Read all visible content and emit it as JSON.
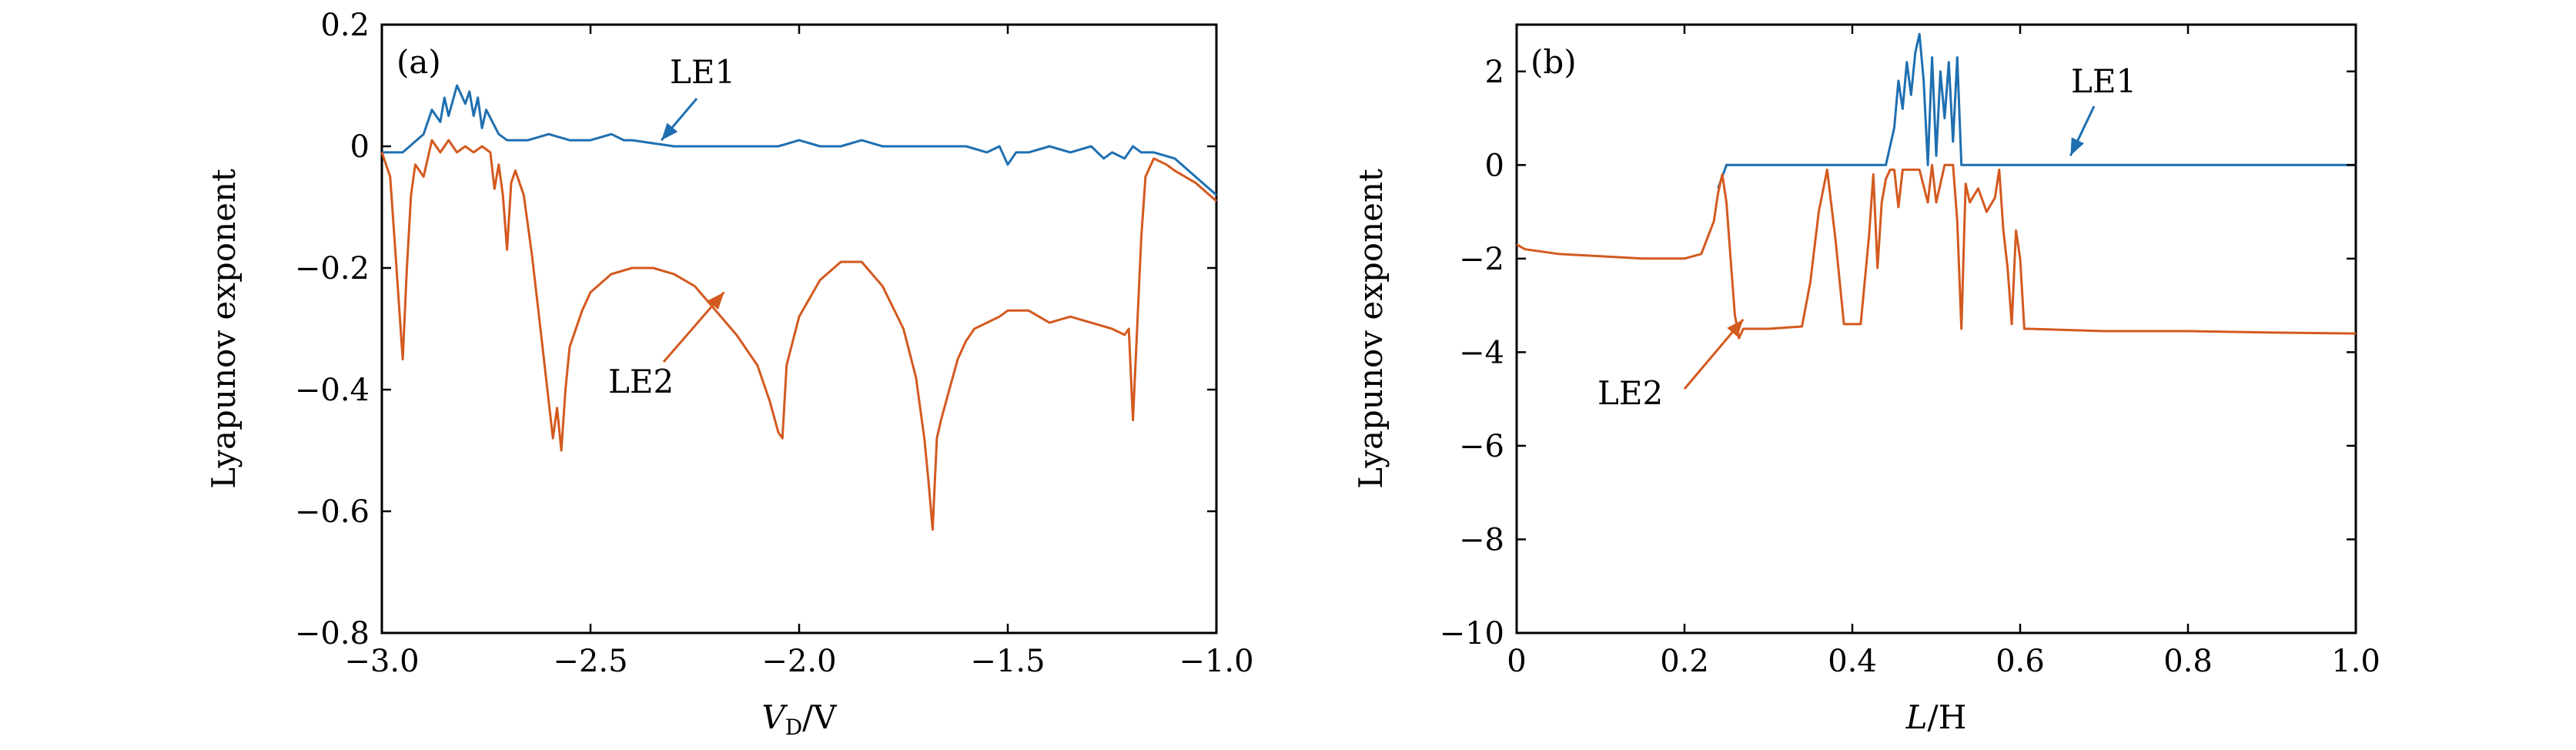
{
  "chart_data": [
    {
      "type": "line",
      "panel_label": "(a)",
      "xlabel": "V_D/V",
      "xlabel_main": "V",
      "xlabel_sub": "D",
      "xlabel_rest": "/V",
      "ylabel": "Lyapunov exponent",
      "xlim": [
        -3.0,
        -1.0
      ],
      "ylim": [
        -0.8,
        0.2
      ],
      "xticks": [
        -3.0,
        -2.5,
        -2.0,
        -1.5,
        -1.0
      ],
      "xtick_labels": [
        "−3.0",
        "−2.5",
        "−2.0",
        "−1.5",
        "−1.0"
      ],
      "yticks": [
        -0.8,
        -0.6,
        -0.4,
        -0.2,
        0,
        0.2
      ],
      "ytick_labels": [
        "−0.8",
        "−0.6",
        "−0.4",
        "−0.2",
        "0",
        "0.2"
      ],
      "grid": false,
      "series": [
        {
          "name": "LE1",
          "color": "#1f6fb0",
          "x": [
            -3.0,
            -2.95,
            -2.9,
            -2.88,
            -2.86,
            -2.85,
            -2.84,
            -2.82,
            -2.8,
            -2.79,
            -2.78,
            -2.77,
            -2.76,
            -2.75,
            -2.72,
            -2.7,
            -2.65,
            -2.6,
            -2.55,
            -2.5,
            -2.45,
            -2.42,
            -2.4,
            -2.3,
            -2.2,
            -2.1,
            -2.05,
            -2.0,
            -1.95,
            -1.9,
            -1.85,
            -1.8,
            -1.7,
            -1.6,
            -1.55,
            -1.52,
            -1.5,
            -1.48,
            -1.45,
            -1.4,
            -1.35,
            -1.3,
            -1.27,
            -1.25,
            -1.22,
            -1.2,
            -1.18,
            -1.15,
            -1.1,
            -1.05,
            -1.0
          ],
          "y": [
            -0.01,
            -0.01,
            0.02,
            0.06,
            0.04,
            0.08,
            0.05,
            0.1,
            0.07,
            0.09,
            0.05,
            0.08,
            0.03,
            0.06,
            0.02,
            0.01,
            0.01,
            0.02,
            0.01,
            0.01,
            0.02,
            0.01,
            0.01,
            0.0,
            0.0,
            0.0,
            0.0,
            0.01,
            0.0,
            0.0,
            0.01,
            0.0,
            0.0,
            0.0,
            -0.01,
            0.0,
            -0.03,
            -0.01,
            -0.01,
            0.0,
            -0.01,
            0.0,
            -0.02,
            -0.01,
            -0.02,
            0.0,
            -0.01,
            -0.01,
            -0.02,
            -0.05,
            -0.08
          ]
        },
        {
          "name": "LE2",
          "color": "#d4591f",
          "x": [
            -3.0,
            -2.98,
            -2.97,
            -2.96,
            -2.95,
            -2.94,
            -2.93,
            -2.92,
            -2.9,
            -2.88,
            -2.86,
            -2.84,
            -2.82,
            -2.8,
            -2.78,
            -2.76,
            -2.74,
            -2.73,
            -2.72,
            -2.71,
            -2.7,
            -2.69,
            -2.68,
            -2.66,
            -2.64,
            -2.62,
            -2.6,
            -2.59,
            -2.58,
            -2.57,
            -2.56,
            -2.55,
            -2.52,
            -2.5,
            -2.45,
            -2.4,
            -2.35,
            -2.3,
            -2.25,
            -2.2,
            -2.15,
            -2.1,
            -2.07,
            -2.05,
            -2.04,
            -2.03,
            -2.0,
            -1.95,
            -1.9,
            -1.85,
            -1.8,
            -1.75,
            -1.72,
            -1.7,
            -1.69,
            -1.68,
            -1.67,
            -1.66,
            -1.64,
            -1.62,
            -1.6,
            -1.58,
            -1.55,
            -1.52,
            -1.5,
            -1.45,
            -1.4,
            -1.35,
            -1.3,
            -1.25,
            -1.22,
            -1.21,
            -1.2,
            -1.19,
            -1.18,
            -1.17,
            -1.15,
            -1.12,
            -1.1,
            -1.05,
            -1.0
          ],
          "y": [
            -0.01,
            -0.05,
            -0.15,
            -0.25,
            -0.35,
            -0.2,
            -0.08,
            -0.03,
            -0.05,
            0.01,
            -0.01,
            0.01,
            -0.01,
            0.0,
            -0.01,
            0.0,
            -0.01,
            -0.07,
            -0.03,
            -0.08,
            -0.17,
            -0.06,
            -0.04,
            -0.08,
            -0.18,
            -0.3,
            -0.42,
            -0.48,
            -0.43,
            -0.5,
            -0.4,
            -0.33,
            -0.27,
            -0.24,
            -0.21,
            -0.2,
            -0.2,
            -0.21,
            -0.23,
            -0.27,
            -0.31,
            -0.36,
            -0.42,
            -0.47,
            -0.48,
            -0.36,
            -0.28,
            -0.22,
            -0.19,
            -0.19,
            -0.23,
            -0.3,
            -0.38,
            -0.48,
            -0.55,
            -0.63,
            -0.48,
            -0.45,
            -0.4,
            -0.35,
            -0.32,
            -0.3,
            -0.29,
            -0.28,
            -0.27,
            -0.27,
            -0.29,
            -0.28,
            -0.29,
            -0.3,
            -0.31,
            -0.3,
            -0.45,
            -0.3,
            -0.15,
            -0.05,
            -0.02,
            -0.03,
            -0.04,
            -0.06,
            -0.09
          ]
        }
      ],
      "annotations": [
        {
          "text": "LE1",
          "target": [
            -2.33,
            0.01
          ],
          "series_color": "#1f6fb0"
        },
        {
          "text": "LE2",
          "target": [
            -2.18,
            -0.24
          ],
          "series_color": "#d4591f"
        }
      ]
    },
    {
      "type": "line",
      "panel_label": "(b)",
      "xlabel": "L/H",
      "xlabel_main": "L",
      "xlabel_rest": "/H",
      "ylabel": "Lyapunov exponent",
      "xlim": [
        0,
        1.0
      ],
      "ylim": [
        -10,
        3
      ],
      "xticks": [
        0,
        0.2,
        0.4,
        0.6,
        0.8,
        1.0
      ],
      "xtick_labels": [
        "0",
        "0.2",
        "0.4",
        "0.6",
        "0.8",
        "1.0"
      ],
      "yticks": [
        -10,
        -8,
        -6,
        -4,
        -2,
        0,
        2
      ],
      "ytick_labels": [
        "−10",
        "−8",
        "−6",
        "−4",
        "−2",
        "0",
        "2"
      ],
      "grid": false,
      "series": [
        {
          "name": "LE1",
          "color": "#1f6fb0",
          "x": [
            0,
            0.24,
            0.25,
            0.44,
            0.45,
            0.455,
            0.46,
            0.465,
            0.47,
            0.475,
            0.48,
            0.485,
            0.49,
            0.495,
            0.5,
            0.505,
            0.51,
            0.515,
            0.52,
            0.525,
            0.53,
            0.6,
            0.8,
            1.0
          ],
          "y": [
            null,
            -0.5,
            0,
            0,
            0.8,
            1.8,
            1.2,
            2.2,
            1.5,
            2.4,
            2.8,
            1.8,
            0,
            2.3,
            0.2,
            2.0,
            1.0,
            2.2,
            0.5,
            2.3,
            0,
            0,
            0,
            0
          ]
        },
        {
          "name": "LE2",
          "color": "#d4591f",
          "x": [
            0,
            0.01,
            0.05,
            0.1,
            0.15,
            0.2,
            0.22,
            0.235,
            0.24,
            0.245,
            0.25,
            0.255,
            0.26,
            0.265,
            0.27,
            0.3,
            0.34,
            0.35,
            0.36,
            0.37,
            0.38,
            0.39,
            0.41,
            0.42,
            0.425,
            0.43,
            0.435,
            0.44,
            0.445,
            0.45,
            0.455,
            0.46,
            0.47,
            0.48,
            0.49,
            0.495,
            0.5,
            0.51,
            0.52,
            0.525,
            0.53,
            0.535,
            0.54,
            0.55,
            0.56,
            0.57,
            0.575,
            0.58,
            0.585,
            0.59,
            0.595,
            0.6,
            0.605,
            0.61,
            0.7,
            0.8,
            0.9,
            1.0
          ],
          "y": [
            -1.7,
            -1.8,
            -1.9,
            -1.95,
            -2.0,
            -2.0,
            -1.9,
            -1.2,
            -0.6,
            -0.2,
            -0.8,
            -2.0,
            -3.2,
            -3.7,
            -3.5,
            -3.5,
            -3.45,
            -2.5,
            -1.0,
            -0.1,
            -1.6,
            -3.4,
            -3.4,
            -1.5,
            -0.2,
            -2.2,
            -0.8,
            -0.3,
            -0.1,
            -0.1,
            -0.9,
            -0.1,
            -0.1,
            -0.1,
            -0.8,
            0,
            -0.8,
            0,
            0,
            -1.2,
            -3.5,
            -0.4,
            -0.8,
            -0.5,
            -1.0,
            -0.7,
            -0.1,
            -1.4,
            -2.2,
            -3.4,
            -1.4,
            -2.0,
            -3.5,
            -3.5,
            -3.55,
            -3.55,
            -3.58,
            -3.6
          ]
        }
      ],
      "annotations": [
        {
          "text": "LE1",
          "target": [
            0.66,
            0.2
          ],
          "series_color": "#1f6fb0"
        },
        {
          "text": "LE2",
          "target": [
            0.27,
            -3.3
          ],
          "series_color": "#d4591f"
        }
      ]
    }
  ]
}
